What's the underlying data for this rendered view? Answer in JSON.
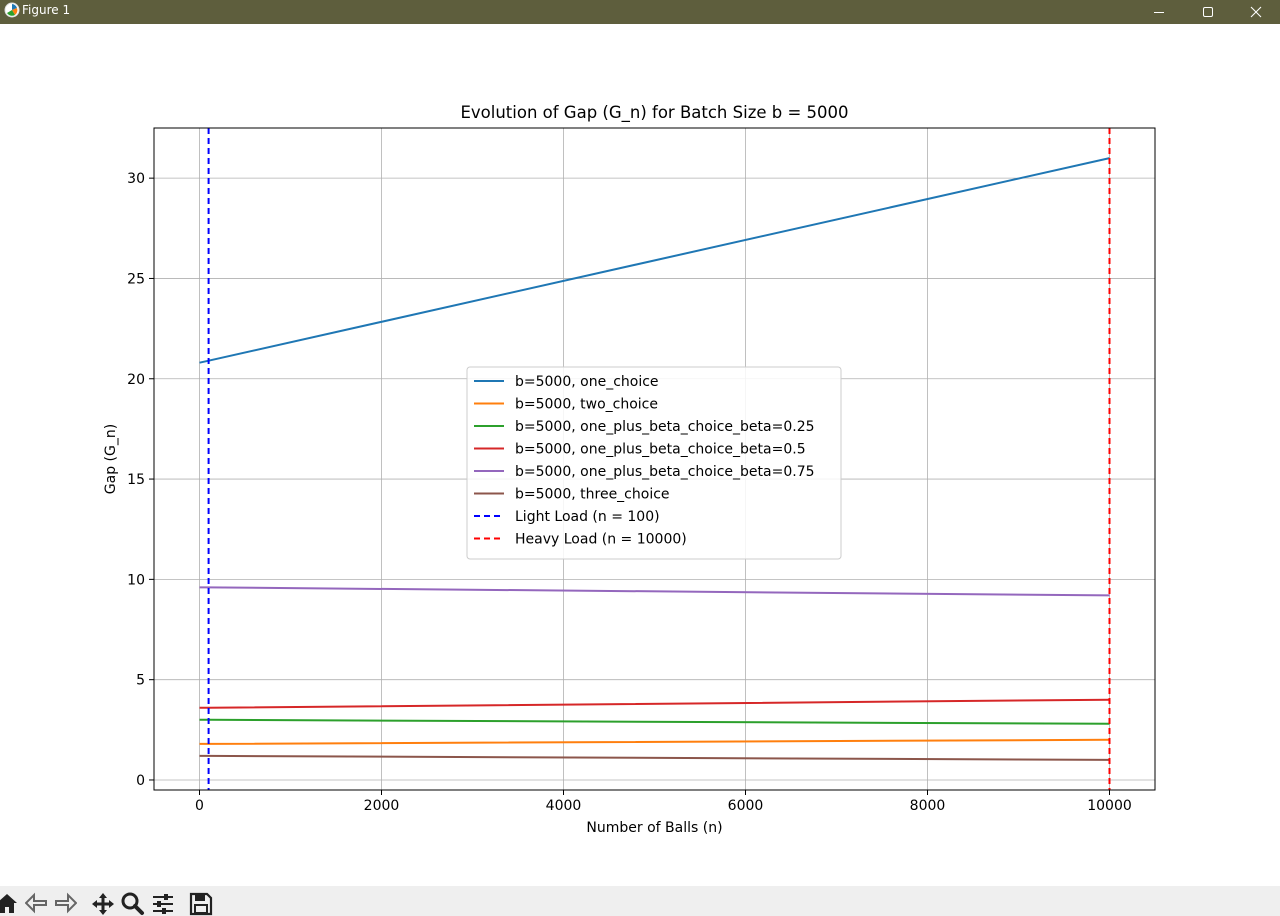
{
  "window": {
    "title": "Figure 1"
  },
  "toolbar": {
    "tools": [
      "home-icon",
      "back-arrow-icon",
      "forward-arrow-icon",
      "pan-icon",
      "zoom-icon",
      "configure-subplots-icon",
      "save-icon"
    ]
  },
  "chart_data": {
    "type": "line",
    "title": "Evolution of Gap (G_n) for Batch Size b = 5000",
    "xlabel": "Number of Balls (n)",
    "ylabel": "Gap (G_n)",
    "xlim": [
      -500,
      10500
    ],
    "ylim": [
      -0.5,
      32.5
    ],
    "xticks": [
      0,
      2000,
      4000,
      6000,
      8000,
      10000
    ],
    "yticks": [
      0,
      5,
      10,
      15,
      20,
      25,
      30
    ],
    "grid": true,
    "legend_position": "center",
    "series": [
      {
        "name": "b=5000, one_choice",
        "color": "#1f77b4",
        "style": "solid",
        "x": [
          0,
          100,
          10000
        ],
        "y": [
          20.8,
          20.9,
          31.0
        ]
      },
      {
        "name": "b=5000, two_choice",
        "color": "#ff7f0e",
        "style": "solid",
        "x": [
          0,
          100,
          10000
        ],
        "y": [
          1.8,
          1.8,
          2.0
        ]
      },
      {
        "name": "b=5000, one_plus_beta_choice_beta=0.25",
        "color": "#2ca02c",
        "style": "solid",
        "x": [
          0,
          100,
          10000
        ],
        "y": [
          3.0,
          3.0,
          2.8
        ]
      },
      {
        "name": "b=5000, one_plus_beta_choice_beta=0.5",
        "color": "#d62728",
        "style": "solid",
        "x": [
          0,
          100,
          10000
        ],
        "y": [
          3.6,
          3.6,
          4.0
        ]
      },
      {
        "name": "b=5000, one_plus_beta_choice_beta=0.75",
        "color": "#9467bd",
        "style": "solid",
        "x": [
          0,
          100,
          10000
        ],
        "y": [
          9.6,
          9.6,
          9.2
        ]
      },
      {
        "name": "b=5000, three_choice",
        "color": "#8c564b",
        "style": "solid",
        "x": [
          0,
          100,
          10000
        ],
        "y": [
          1.2,
          1.2,
          1.0
        ]
      }
    ],
    "vlines": [
      {
        "name": "Light Load (n = 100)",
        "x": 100,
        "color": "#0000ff",
        "style": "dashed"
      },
      {
        "name": "Heavy Load (n = 10000)",
        "x": 10000,
        "color": "#ff0000",
        "style": "dashed"
      }
    ],
    "colors": {
      "grid": "#b0b0b0",
      "axes": "#000000",
      "legend_border": "#cccccc"
    }
  }
}
